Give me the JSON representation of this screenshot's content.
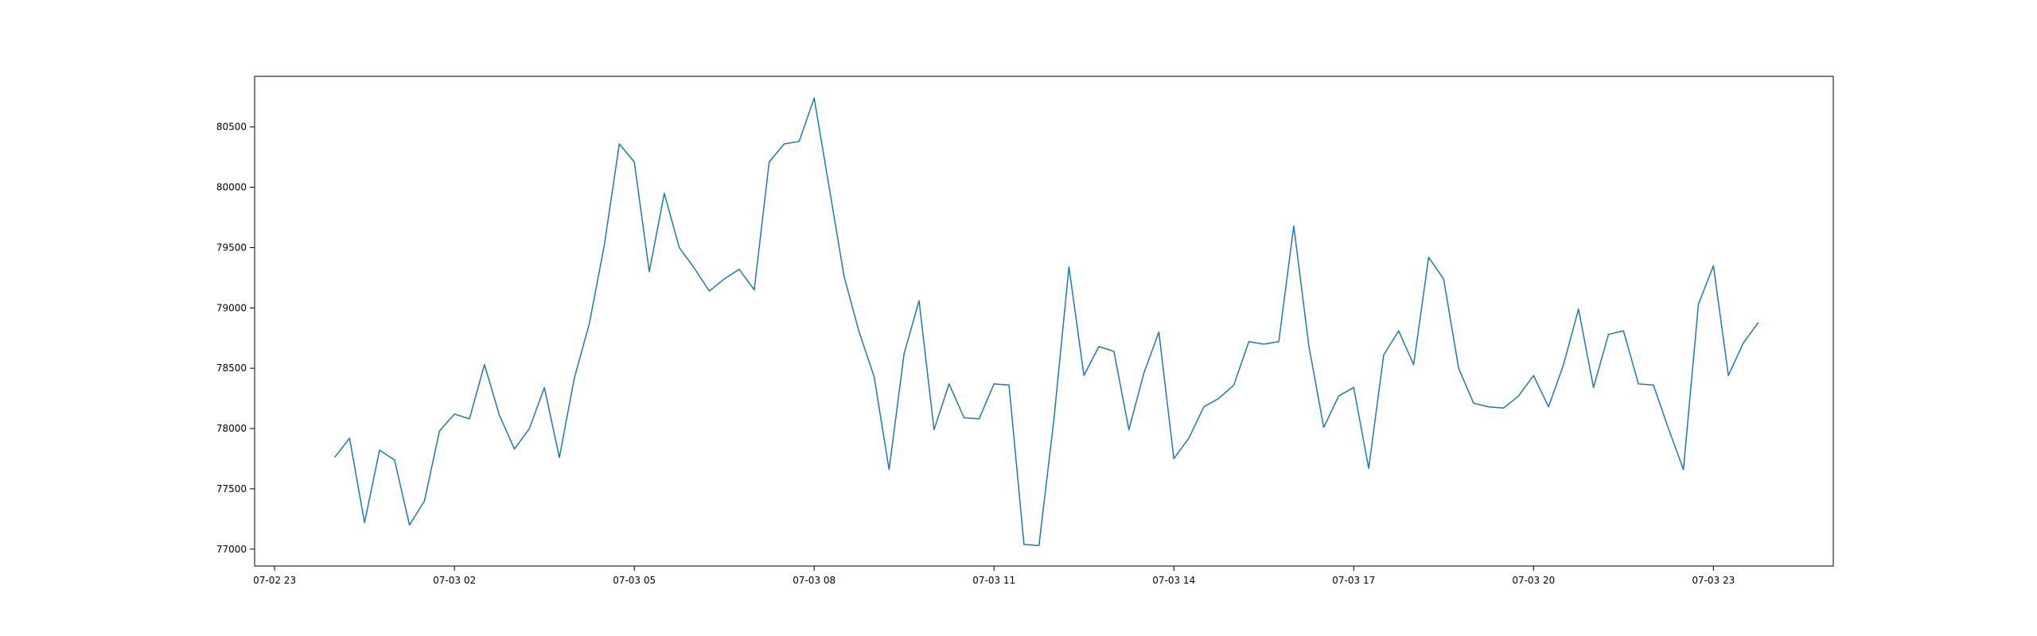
{
  "chart_data": {
    "type": "line",
    "title": "",
    "xlabel": "",
    "ylabel": "",
    "grid": false,
    "legend": "none",
    "line_color": "#1f77b4",
    "xlim": [
      "2023-07-02T22:40",
      "2023-07-04T01:00"
    ],
    "ylim": [
      76860,
      80920
    ],
    "x_ticks": [
      {
        "value": "2023-07-02T23:00",
        "label": "07-02 23"
      },
      {
        "value": "2023-07-03T02:00",
        "label": "07-03 02"
      },
      {
        "value": "2023-07-03T05:00",
        "label": "07-03 05"
      },
      {
        "value": "2023-07-03T08:00",
        "label": "07-03 08"
      },
      {
        "value": "2023-07-03T11:00",
        "label": "07-03 11"
      },
      {
        "value": "2023-07-03T14:00",
        "label": "07-03 14"
      },
      {
        "value": "2023-07-03T17:00",
        "label": "07-03 17"
      },
      {
        "value": "2023-07-03T20:00",
        "label": "07-03 20"
      },
      {
        "value": "2023-07-03T23:00",
        "label": "07-03 23"
      }
    ],
    "y_ticks": [
      {
        "value": 77000,
        "label": "77000"
      },
      {
        "value": 77500,
        "label": "77500"
      },
      {
        "value": 78000,
        "label": "78000"
      },
      {
        "value": 78500,
        "label": "78500"
      },
      {
        "value": 79000,
        "label": "79000"
      },
      {
        "value": 79500,
        "label": "79500"
      },
      {
        "value": 80000,
        "label": "80000"
      },
      {
        "value": 80500,
        "label": "80500"
      }
    ],
    "x": [
      "2023-07-03T00:00",
      "2023-07-03T00:15",
      "2023-07-03T00:30",
      "2023-07-03T00:45",
      "2023-07-03T01:00",
      "2023-07-03T01:15",
      "2023-07-03T01:30",
      "2023-07-03T01:45",
      "2023-07-03T02:00",
      "2023-07-03T02:15",
      "2023-07-03T02:30",
      "2023-07-03T02:45",
      "2023-07-03T03:00",
      "2023-07-03T03:15",
      "2023-07-03T03:30",
      "2023-07-03T03:45",
      "2023-07-03T04:00",
      "2023-07-03T04:15",
      "2023-07-03T04:30",
      "2023-07-03T04:45",
      "2023-07-03T05:00",
      "2023-07-03T05:15",
      "2023-07-03T05:30",
      "2023-07-03T05:45",
      "2023-07-03T06:00",
      "2023-07-03T06:15",
      "2023-07-03T06:30",
      "2023-07-03T06:45",
      "2023-07-03T07:00",
      "2023-07-03T07:15",
      "2023-07-03T07:30",
      "2023-07-03T07:45",
      "2023-07-03T08:00",
      "2023-07-03T08:15",
      "2023-07-03T08:30",
      "2023-07-03T08:45",
      "2023-07-03T09:00",
      "2023-07-03T09:15",
      "2023-07-03T09:30",
      "2023-07-03T09:45",
      "2023-07-03T10:00",
      "2023-07-03T10:15",
      "2023-07-03T10:30",
      "2023-07-03T10:45",
      "2023-07-03T11:00",
      "2023-07-03T11:15",
      "2023-07-03T11:30",
      "2023-07-03T11:45",
      "2023-07-03T12:00",
      "2023-07-03T12:15",
      "2023-07-03T12:30",
      "2023-07-03T12:45",
      "2023-07-03T13:00",
      "2023-07-03T13:15",
      "2023-07-03T13:30",
      "2023-07-03T13:45",
      "2023-07-03T14:00",
      "2023-07-03T14:15",
      "2023-07-03T14:30",
      "2023-07-03T14:45",
      "2023-07-03T15:00",
      "2023-07-03T15:15",
      "2023-07-03T15:30",
      "2023-07-03T15:45",
      "2023-07-03T16:00",
      "2023-07-03T16:15",
      "2023-07-03T16:30",
      "2023-07-03T16:45",
      "2023-07-03T17:00",
      "2023-07-03T17:15",
      "2023-07-03T17:30",
      "2023-07-03T17:45",
      "2023-07-03T18:00",
      "2023-07-03T18:15",
      "2023-07-03T18:30",
      "2023-07-03T18:45",
      "2023-07-03T19:00",
      "2023-07-03T19:15",
      "2023-07-03T19:30",
      "2023-07-03T19:45",
      "2023-07-03T20:00",
      "2023-07-03T20:15",
      "2023-07-03T20:30",
      "2023-07-03T20:45",
      "2023-07-03T21:00",
      "2023-07-03T21:15",
      "2023-07-03T21:30",
      "2023-07-03T21:45",
      "2023-07-03T22:00",
      "2023-07-03T22:15",
      "2023-07-03T22:30",
      "2023-07-03T22:45",
      "2023-07-03T23:00",
      "2023-07-03T23:15",
      "2023-07-03T23:30",
      "2023-07-03T23:45"
    ],
    "series": [
      {
        "values": [
          77760,
          77920,
          77220,
          77820,
          77740,
          77200,
          77400,
          77980,
          78120,
          78080,
          78530,
          78110,
          77830,
          78000,
          78340,
          77760,
          78420,
          78870,
          79520,
          80360,
          80210,
          79300,
          79950,
          79500,
          79330,
          79140,
          79240,
          79320,
          79150,
          80210,
          80360,
          80380,
          80740,
          80000,
          79260,
          78800,
          78430,
          77660,
          78620,
          79060,
          77990,
          78370,
          78090,
          78080,
          78370,
          78360,
          77040,
          77030,
          78080,
          79340,
          78440,
          78680,
          78640,
          77990,
          78460,
          78800,
          77750,
          77920,
          78180,
          78250,
          78360,
          78720,
          78700,
          78720,
          79680,
          78690,
          78010,
          78270,
          78340,
          77670,
          78610,
          78810,
          78530,
          79420,
          79240,
          78500,
          78210,
          78180,
          78170,
          78270,
          78440,
          78180,
          78530,
          78990,
          78340,
          78780,
          78810,
          78370,
          78360,
          78000,
          77660,
          79030,
          79350,
          78440,
          78710,
          78880
        ]
      }
    ]
  }
}
